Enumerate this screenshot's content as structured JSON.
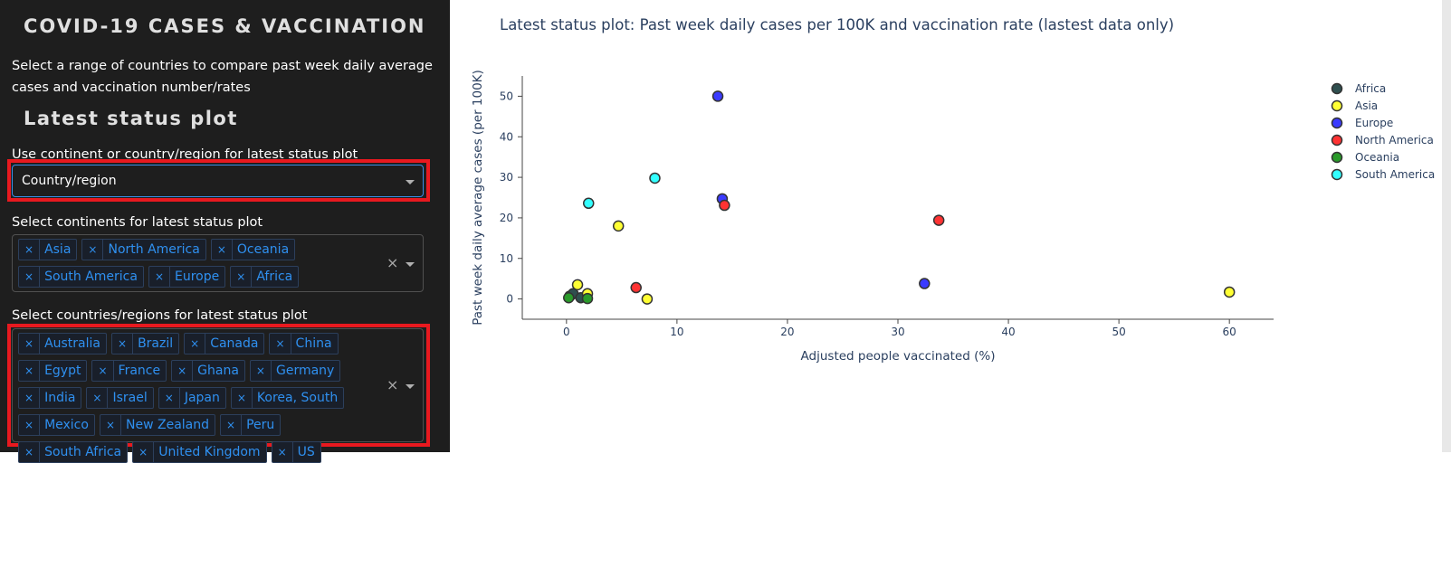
{
  "app": {
    "title": "COVID-19 CASES & VACCINATION",
    "intro": "Select a range of countries to compare past week daily average cases and vaccination number/rates"
  },
  "panel": {
    "section_title": "Latest status plot",
    "mode_label": "Use continent or country/region for latest status plot",
    "mode_value": "Country/region",
    "continents_label": "Select continents for latest status plot",
    "continents": [
      "Asia",
      "North America",
      "Oceania",
      "South America",
      "Europe",
      "Africa"
    ],
    "countries_label": "Select countries/regions for latest status plot",
    "countries": [
      "Australia",
      "Brazil",
      "Canada",
      "China",
      "Egypt",
      "France",
      "Ghana",
      "Germany",
      "India",
      "Israel",
      "Japan",
      "Korea, South",
      "Mexico",
      "New Zealand",
      "Peru",
      "South Africa",
      "United Kingdom",
      "US"
    ],
    "remove_glyph": "×",
    "clear_glyph": "×"
  },
  "colors": {
    "sidebar_bg": "#1e1e1e",
    "highlight": "#e8191f",
    "tag_text": "#2f90f0",
    "Africa": "#2f4f4f",
    "Asia": "#ffff33",
    "Europe": "#3b3bff",
    "North America": "#ff3333",
    "Oceania": "#2a9a2a",
    "South America": "#33ffff"
  },
  "chart_data": {
    "type": "scatter",
    "title": "Latest status plot: Past week daily cases per 100K and vaccination rate (lastest data only)",
    "xlabel": "Adjusted people vaccinated (%)",
    "ylabel": "Past week daily average cases (per 100K)",
    "xlim": [
      -4,
      64
    ],
    "ylim": [
      -5,
      55
    ],
    "xticks": [
      0,
      10,
      20,
      30,
      40,
      50,
      60
    ],
    "yticks": [
      0,
      10,
      20,
      30,
      40,
      50
    ],
    "grid": false,
    "legend_position": "right",
    "series": [
      {
        "name": "Africa",
        "points": [
          [
            0.3,
            0.7
          ],
          [
            0.6,
            1.3
          ],
          [
            1.3,
            0.3
          ]
        ]
      },
      {
        "name": "Asia",
        "points": [
          [
            1.0,
            3.5
          ],
          [
            1.9,
            1.3
          ],
          [
            4.7,
            18.0
          ],
          [
            7.3,
            0.0
          ],
          [
            60.0,
            1.7
          ]
        ]
      },
      {
        "name": "Europe",
        "points": [
          [
            13.7,
            50.0
          ],
          [
            14.1,
            24.7
          ],
          [
            32.4,
            3.8
          ]
        ]
      },
      {
        "name": "North America",
        "points": [
          [
            6.3,
            2.8
          ],
          [
            14.3,
            23.1
          ],
          [
            33.7,
            19.4
          ]
        ]
      },
      {
        "name": "Oceania",
        "points": [
          [
            0.2,
            0.3
          ],
          [
            1.9,
            0.1
          ]
        ]
      },
      {
        "name": "South America",
        "points": [
          [
            2.0,
            23.6
          ],
          [
            8.0,
            29.8
          ]
        ]
      }
    ]
  }
}
